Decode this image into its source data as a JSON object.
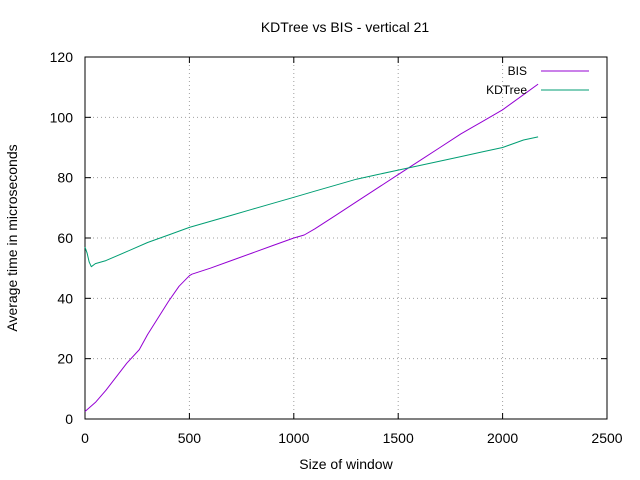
{
  "chart_data": {
    "type": "line",
    "title": "KDTree vs BIS - vertical 21",
    "xlabel": "Size of window",
    "ylabel": "Average time in microseconds",
    "xlim": [
      0,
      2500
    ],
    "ylim": [
      0,
      120
    ],
    "x_ticks": [
      "0",
      "500",
      "1000",
      "1500",
      "2000",
      "2500"
    ],
    "y_ticks": [
      "0",
      "20",
      "40",
      "60",
      "80",
      "100",
      "120"
    ],
    "grid": true,
    "legend_position": "top-right",
    "series": [
      {
        "name": "BIS",
        "color": "#9400d3",
        "x": [
          0,
          50,
          100,
          150,
          200,
          260,
          300,
          350,
          400,
          450,
          500,
          512,
          600,
          700,
          800,
          900,
          1000,
          1050,
          1100,
          1200,
          1300,
          1400,
          1500,
          1600,
          1700,
          1800,
          1900,
          2000,
          2100,
          2170
        ],
        "y": [
          2.5,
          5.5,
          9.5,
          14,
          18.5,
          23,
          28,
          33.5,
          39,
          44,
          47.5,
          48,
          50,
          52.5,
          55,
          57.5,
          60,
          61,
          63,
          67.5,
          72,
          76.5,
          81,
          85.5,
          90,
          94.5,
          98.5,
          102.5,
          107.5,
          111
        ]
      },
      {
        "name": "KDTree",
        "color": "#009e73",
        "x": [
          0,
          10,
          20,
          30,
          50,
          100,
          200,
          300,
          400,
          500,
          600,
          700,
          800,
          900,
          1000,
          1100,
          1200,
          1300,
          1400,
          1500,
          1600,
          1700,
          1800,
          1900,
          2000,
          2100,
          2170
        ],
        "y": [
          57,
          55,
          52,
          50.5,
          51.5,
          52.5,
          55.5,
          58.5,
          61,
          63.5,
          65.5,
          67.5,
          69.5,
          71.5,
          73.5,
          75.5,
          77.5,
          79.5,
          81,
          82.5,
          84,
          85.5,
          87,
          88.5,
          90,
          92.5,
          93.5
        ]
      }
    ]
  }
}
